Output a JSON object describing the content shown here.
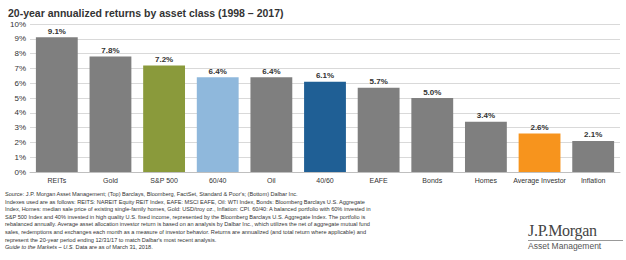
{
  "chart_data": {
    "type": "bar",
    "title": "20-year annualized returns by asset class (1998 – 2017)",
    "categories": [
      "REITs",
      "Gold",
      "S&P 500",
      "60/40",
      "Oil",
      "40/60",
      "EAFE",
      "Bonds",
      "Homes",
      "Average Investor",
      "Inflation"
    ],
    "values": [
      9.1,
      7.8,
      7.2,
      6.4,
      6.4,
      6.1,
      5.7,
      5.0,
      3.4,
      2.6,
      2.1
    ],
    "value_labels": [
      "9.1%",
      "7.8%",
      "7.2%",
      "6.4%",
      "6.4%",
      "6.1%",
      "5.7%",
      "5.0%",
      "3.4%",
      "2.6%",
      "2.1%"
    ],
    "colors": [
      "#7f7f7f",
      "#7f7f7f",
      "#8a9a3b",
      "#8fb8dc",
      "#7f7f7f",
      "#1f5f95",
      "#7f7f7f",
      "#7f7f7f",
      "#7f7f7f",
      "#f7941d",
      "#7f7f7f"
    ],
    "ylim": [
      0,
      10
    ],
    "yticks": [
      {
        "value": 0,
        "label": "0%"
      },
      {
        "value": 1,
        "label": "1%"
      },
      {
        "value": 2,
        "label": "2%"
      },
      {
        "value": 3,
        "label": "3%"
      },
      {
        "value": 4,
        "label": "4%"
      },
      {
        "value": 5,
        "label": "5%"
      },
      {
        "value": 6,
        "label": "6%"
      },
      {
        "value": 7,
        "label": "7%"
      },
      {
        "value": 8,
        "label": "8%"
      },
      {
        "value": 9,
        "label": "9%"
      },
      {
        "value": 10,
        "label": "10%"
      }
    ],
    "grid": true,
    "data_labels": true
  },
  "notes": [
    "Source: J.P. Morgan Asset Management; (Top) Barclays, Bloomberg, FactSet, Standard & Poor's; (Bottom) Dalbar Inc.",
    "Indexes used are as follows: REITS: NAREIT Equity REIT Index, EAFE: MSCI EAFE, Oil: WTI Index, Bonds: Bloomberg Barclays U.S. Aggregate",
    "Index, Homes: median sale price of existing single-family homes, Gold: USD/troy oz., Inflation: CPI. 60/40: A balanced portfolio with 60% invested in",
    "S&P 500 Index and 40% invested in high quality U.S. fixed income, represented by the Bloomberg Barclays U.S. Aggregate Index. The portfolio is",
    "rebalanced annually. Average asset allocation investor return is based on an analysis by Dalbar Inc., which utilizes the net of aggregate mutual fund",
    "sales, redemptions and exchanges each month as a measure of investor behavior. Returns are annualized (and total return where applicable) and",
    "represent the 20-year period ending 12/31/17 to match Dalbar's most recent analysis."
  ],
  "guide": {
    "italic": "Guide to the Markets – U.S.",
    "text": "Data are as of March 31, 2018."
  },
  "logo": {
    "brand": "J.P.Morgan",
    "subtitle": "Asset Management"
  }
}
